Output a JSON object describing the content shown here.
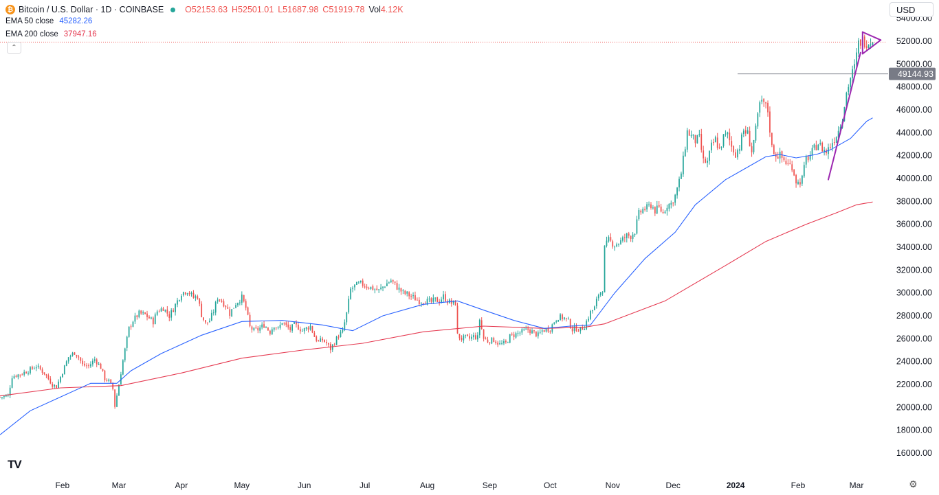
{
  "header": {
    "symbol": "Bitcoin / U.S. Dollar · 1D · COINBASE",
    "coin_glyph": "₿",
    "open": "O52153.63",
    "high": "H52501.01",
    "low": "L51687.98",
    "close": "C51919.78",
    "vol_label": "Vol",
    "vol_value": "4.12K"
  },
  "indicators": {
    "ema50_label": "EMA 50 close",
    "ema50_value": "45282.26",
    "ema200_label": "EMA 200 close",
    "ema200_value": "37947.16"
  },
  "controls": {
    "collapse_glyph": "⌃",
    "currency": "USD",
    "logo": "TV",
    "gear_glyph": "⚙"
  },
  "colors": {
    "up": "#26a69a",
    "down": "#ef5350",
    "ema50": "#2962ff",
    "ema200": "#e53950",
    "pattern": "#9c27b0",
    "hline": "#787b86",
    "hline_badge": "#787b86"
  },
  "chart_data": {
    "type": "candlestick",
    "title": "Bitcoin / U.S. Dollar · 1D · COINBASE",
    "ylim": [
      14200,
      55600
    ],
    "y_ticks": [
      "16000.00",
      "18000.00",
      "20000.00",
      "22000.00",
      "24000.00",
      "26000.00",
      "28000.00",
      "30000.00",
      "32000.00",
      "34000.00",
      "36000.00",
      "38000.00",
      "40000.00",
      "42000.00",
      "44000.00",
      "46000.00",
      "48000.00",
      "50000.00",
      "52000.00",
      "54000.00"
    ],
    "x_ticks": [
      {
        "label": "Feb",
        "day": 31,
        "bold": false
      },
      {
        "label": "Mar",
        "day": 59,
        "bold": false
      },
      {
        "label": "Apr",
        "day": 90,
        "bold": false
      },
      {
        "label": "May",
        "day": 120,
        "bold": false
      },
      {
        "label": "Jun",
        "day": 151,
        "bold": false
      },
      {
        "label": "Jul",
        "day": 181,
        "bold": false
      },
      {
        "label": "Aug",
        "day": 212,
        "bold": false
      },
      {
        "label": "Sep",
        "day": 243,
        "bold": false
      },
      {
        "label": "Oct",
        "day": 273,
        "bold": false
      },
      {
        "label": "Nov",
        "day": 304,
        "bold": false
      },
      {
        "label": "Dec",
        "day": 334,
        "bold": false
      },
      {
        "label": "2024",
        "day": 365,
        "bold": true
      },
      {
        "label": "Feb",
        "day": 396,
        "bold": false
      },
      {
        "label": "Mar",
        "day": 425,
        "bold": false
      }
    ],
    "day_range": [
      0,
      440
    ],
    "current_price": 51919.78,
    "horizontal_level": {
      "value": 49144.93,
      "label": "49144.93",
      "from_day": 366
    },
    "close_anchors": [
      [
        0,
        20900
      ],
      [
        4,
        21000
      ],
      [
        6,
        22700
      ],
      [
        10,
        22900
      ],
      [
        14,
        23200
      ],
      [
        18,
        23600
      ],
      [
        22,
        23000
      ],
      [
        26,
        22000
      ],
      [
        28,
        21800
      ],
      [
        31,
        23100
      ],
      [
        34,
        24400
      ],
      [
        37,
        24800
      ],
      [
        39,
        24400
      ],
      [
        41,
        23700
      ],
      [
        44,
        23600
      ],
      [
        47,
        24200
      ],
      [
        50,
        23500
      ],
      [
        52,
        22500
      ],
      [
        54,
        22300
      ],
      [
        56,
        21600
      ],
      [
        57,
        20100
      ],
      [
        59,
        22000
      ],
      [
        61,
        24100
      ],
      [
        64,
        26900
      ],
      [
        66,
        27600
      ],
      [
        69,
        28200
      ],
      [
        72,
        28100
      ],
      [
        76,
        27500
      ],
      [
        78,
        28400
      ],
      [
        81,
        28700
      ],
      [
        84,
        28000
      ],
      [
        86,
        28600
      ],
      [
        90,
        30000
      ],
      [
        93,
        30200
      ],
      [
        96,
        29600
      ],
      [
        98,
        29700
      ],
      [
        100,
        28100
      ],
      [
        102,
        27300
      ],
      [
        104,
        27600
      ],
      [
        106,
        28400
      ],
      [
        108,
        29600
      ],
      [
        110,
        29300
      ],
      [
        112,
        28900
      ],
      [
        114,
        28200
      ],
      [
        117,
        29100
      ],
      [
        120,
        29600
      ],
      [
        122,
        28700
      ],
      [
        124,
        27000
      ],
      [
        126,
        26700
      ],
      [
        128,
        26800
      ],
      [
        131,
        27200
      ],
      [
        134,
        26600
      ],
      [
        136,
        27200
      ],
      [
        138,
        26800
      ],
      [
        140,
        27500
      ],
      [
        142,
        27100
      ],
      [
        144,
        26800
      ],
      [
        146,
        27200
      ],
      [
        148,
        27000
      ],
      [
        150,
        26700
      ],
      [
        152,
        26900
      ],
      [
        154,
        27100
      ],
      [
        156,
        26200
      ],
      [
        158,
        25700
      ],
      [
        160,
        25900
      ],
      [
        162,
        25600
      ],
      [
        164,
        25100
      ],
      [
        166,
        25700
      ],
      [
        168,
        26300
      ],
      [
        170,
        26600
      ],
      [
        172,
        28200
      ],
      [
        174,
        30300
      ],
      [
        176,
        30600
      ],
      [
        179,
        30800
      ],
      [
        182,
        30600
      ],
      [
        185,
        30400
      ],
      [
        188,
        30200
      ],
      [
        191,
        30700
      ],
      [
        194,
        31100
      ],
      [
        197,
        30500
      ],
      [
        200,
        30000
      ],
      [
        202,
        29900
      ],
      [
        205,
        29600
      ],
      [
        208,
        29300
      ],
      [
        211,
        29300
      ],
      [
        214,
        29200
      ],
      [
        216,
        29400
      ],
      [
        218,
        29300
      ],
      [
        220,
        29700
      ],
      [
        222,
        29300
      ],
      [
        224,
        29100
      ],
      [
        226,
        29100
      ],
      [
        227,
        26300
      ],
      [
        229,
        26000
      ],
      [
        231,
        26100
      ],
      [
        233,
        26000
      ],
      [
        235,
        26200
      ],
      [
        237,
        26100
      ],
      [
        238,
        27700
      ],
      [
        240,
        26000
      ],
      [
        242,
        25800
      ],
      [
        245,
        25900
      ],
      [
        248,
        25500
      ],
      [
        251,
        25600
      ],
      [
        253,
        26200
      ],
      [
        256,
        26400
      ],
      [
        259,
        26600
      ],
      [
        262,
        26800
      ],
      [
        265,
        26500
      ],
      [
        267,
        26300
      ],
      [
        269,
        26700
      ],
      [
        271,
        26800
      ],
      [
        273,
        26900
      ],
      [
        275,
        27500
      ],
      [
        277,
        27900
      ],
      [
        280,
        27800
      ],
      [
        282,
        27500
      ],
      [
        284,
        26800
      ],
      [
        286,
        26900
      ],
      [
        288,
        26800
      ],
      [
        290,
        27100
      ],
      [
        293,
        28300
      ],
      [
        295,
        28700
      ],
      [
        297,
        29900
      ],
      [
        299,
        30300
      ],
      [
        300,
        33900
      ],
      [
        302,
        34600
      ],
      [
        305,
        34200
      ],
      [
        308,
        34500
      ],
      [
        311,
        35000
      ],
      [
        313,
        35000
      ],
      [
        315,
        35400
      ],
      [
        317,
        36900
      ],
      [
        319,
        37300
      ],
      [
        321,
        37400
      ],
      [
        323,
        37700
      ],
      [
        325,
        37200
      ],
      [
        327,
        37400
      ],
      [
        329,
        37000
      ],
      [
        331,
        37700
      ],
      [
        333,
        37800
      ],
      [
        335,
        38500
      ],
      [
        337,
        39700
      ],
      [
        338,
        40500
      ],
      [
        339,
        41600
      ],
      [
        341,
        44100
      ],
      [
        343,
        43700
      ],
      [
        345,
        43300
      ],
      [
        347,
        43500
      ],
      [
        349,
        41500
      ],
      [
        351,
        41400
      ],
      [
        353,
        42800
      ],
      [
        355,
        43400
      ],
      [
        357,
        42500
      ],
      [
        359,
        43600
      ],
      [
        361,
        43800
      ],
      [
        363,
        42800
      ],
      [
        365,
        42200
      ],
      [
        367,
        42800
      ],
      [
        369,
        44200
      ],
      [
        371,
        43900
      ],
      [
        373,
        42400
      ],
      [
        375,
        44200
      ],
      [
        377,
        46500
      ],
      [
        379,
        46600
      ],
      [
        381,
        45900
      ],
      [
        383,
        42700
      ],
      [
        385,
        42100
      ],
      [
        387,
        42000
      ],
      [
        389,
        41600
      ],
      [
        391,
        41200
      ],
      [
        393,
        41100
      ],
      [
        395,
        39800
      ],
      [
        396,
        39600
      ],
      [
        398,
        40000
      ],
      [
        400,
        41700
      ],
      [
        402,
        42000
      ],
      [
        404,
        42600
      ],
      [
        406,
        43100
      ],
      [
        408,
        42600
      ],
      [
        410,
        42300
      ],
      [
        412,
        42900
      ],
      [
        414,
        43500
      ],
      [
        416,
        44200
      ],
      [
        418,
        45400
      ],
      [
        420,
        47500
      ],
      [
        422,
        48800
      ],
      [
        424,
        49700
      ],
      [
        426,
        51800
      ],
      [
        428,
        52100
      ],
      [
        430,
        51900
      ],
      [
        432,
        52000
      ],
      [
        433,
        51900
      ]
    ],
    "ema50_anchors": [
      [
        0,
        17600
      ],
      [
        15,
        19700
      ],
      [
        30,
        20900
      ],
      [
        45,
        22100
      ],
      [
        58,
        22100
      ],
      [
        65,
        23200
      ],
      [
        80,
        24700
      ],
      [
        100,
        26300
      ],
      [
        120,
        27500
      ],
      [
        140,
        27600
      ],
      [
        160,
        27200
      ],
      [
        175,
        26700
      ],
      [
        190,
        28000
      ],
      [
        210,
        29000
      ],
      [
        227,
        29300
      ],
      [
        240,
        28500
      ],
      [
        255,
        27600
      ],
      [
        270,
        26900
      ],
      [
        283,
        27100
      ],
      [
        293,
        27200
      ],
      [
        305,
        30000
      ],
      [
        320,
        33000
      ],
      [
        335,
        35300
      ],
      [
        345,
        37700
      ],
      [
        360,
        39900
      ],
      [
        370,
        40900
      ],
      [
        380,
        41900
      ],
      [
        387,
        42100
      ],
      [
        395,
        41800
      ],
      [
        405,
        42100
      ],
      [
        412,
        42500
      ],
      [
        422,
        43500
      ],
      [
        430,
        45000
      ],
      [
        433,
        45300
      ]
    ],
    "ema200_anchors": [
      [
        0,
        21000
      ],
      [
        30,
        21700
      ],
      [
        60,
        21900
      ],
      [
        90,
        23000
      ],
      [
        120,
        24300
      ],
      [
        150,
        25000
      ],
      [
        180,
        25600
      ],
      [
        210,
        26600
      ],
      [
        240,
        27100
      ],
      [
        270,
        26900
      ],
      [
        290,
        27000
      ],
      [
        300,
        27300
      ],
      [
        330,
        29300
      ],
      [
        360,
        32400
      ],
      [
        380,
        34500
      ],
      [
        400,
        36000
      ],
      [
        415,
        37000
      ],
      [
        425,
        37700
      ],
      [
        433,
        37950
      ]
    ],
    "pattern": {
      "trend_line": [
        [
          411,
          39900
        ],
        [
          427,
          51000
        ]
      ],
      "triangle_upper": [
        [
          428,
          52800
        ],
        [
          437,
          52100
        ]
      ],
      "triangle_lower": [
        [
          428,
          50900
        ],
        [
          437,
          52100
        ]
      ],
      "triangle_left": [
        [
          428,
          50900
        ],
        [
          428,
          52800
        ]
      ]
    }
  }
}
